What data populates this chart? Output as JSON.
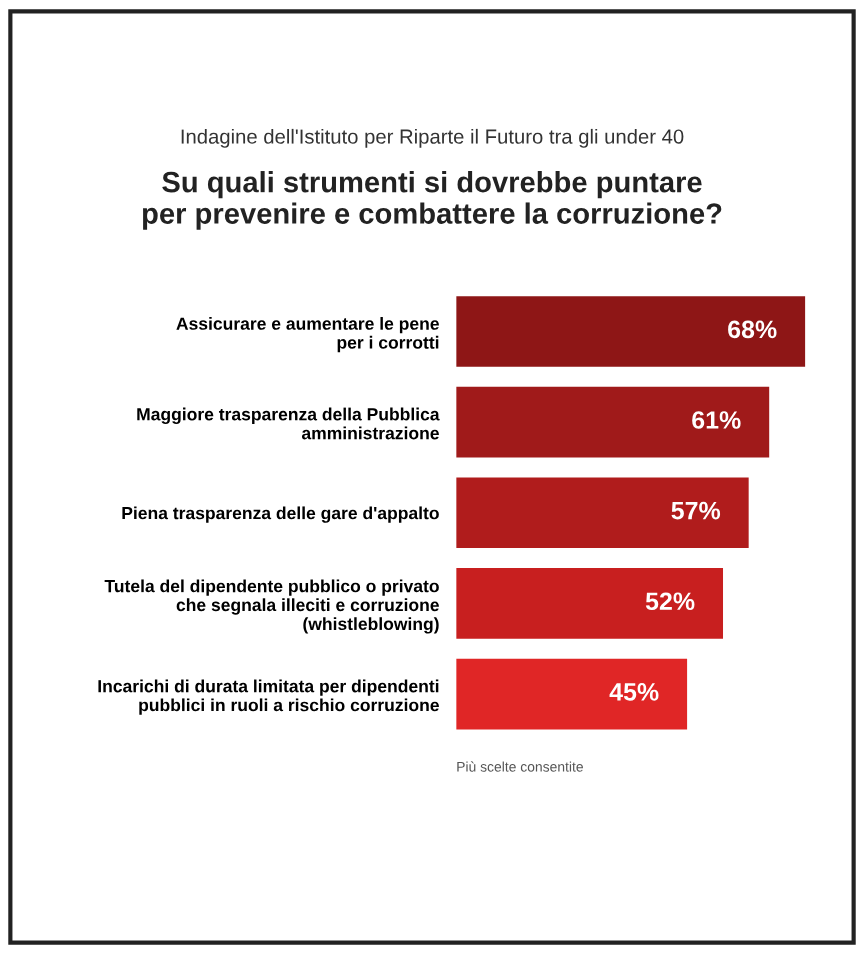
{
  "chart_data": {
    "type": "bar",
    "orientation": "horizontal",
    "subtitle": "Indagine dell'Istituto per Riparte il Futuro tra gli under 40",
    "title": "Su quali strumenti si dovrebbe puntare\nper prevenire e combattere la corruzione?",
    "categories": [
      "Assicurare e aumentare le pene\nper i corrotti",
      "Maggiore trasparenza della Pubblica\namministrazione",
      "Piena trasparenza delle gare d'appalto",
      "Tutela del dipendente pubblico o privato\nche segnala illeciti e corruzione\n(whistleblowing)",
      "Incarichi di durata limitata per dipendenti\npubblici in ruoli a rischio corruzione"
    ],
    "values": [
      68,
      61,
      57,
      52,
      45
    ],
    "colors": [
      "#8e1616",
      "#a01a1a",
      "#b01c1c",
      "#c81f1f",
      "#e02626"
    ],
    "value_labels": [
      "68%",
      "61%",
      "57%",
      "52%",
      "45%"
    ],
    "annotations": [
      "Più scelte consentite"
    ],
    "grid": false,
    "legend": false
  }
}
